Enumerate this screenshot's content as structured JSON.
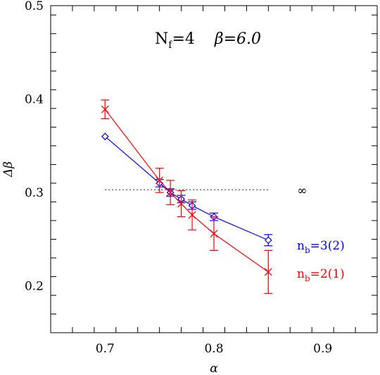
{
  "chart_data": {
    "type": "line",
    "title": "Nf=4   β=6.0",
    "title_parts": {
      "n_main": "N",
      "n_sub": "f",
      "n_rest": "=4",
      "beta": "β=6.0"
    },
    "xlabel": "α",
    "ylabel": "Δβ",
    "xlim": [
      0.65,
      0.95
    ],
    "ylim": [
      0.15,
      0.5
    ],
    "x_ticks": [
      0.7,
      0.8,
      0.9
    ],
    "x_tick_labels": [
      "0.7",
      "0.8",
      "0.9"
    ],
    "y_ticks": [
      0.2,
      0.3,
      0.4,
      0.5
    ],
    "y_tick_labels": [
      "0.2",
      "0.3",
      "0.4",
      "0.5"
    ],
    "x_minor_step": 0.02,
    "y_minor_step": 0.02,
    "grid": false,
    "series": [
      {
        "label_main": "n",
        "label_sub": "b",
        "label_rest": "=3(2)",
        "color": "#0000ff",
        "marker": "diamond",
        "points": [
          {
            "x": 0.7,
            "y": 0.36,
            "err": 0.0
          },
          {
            "x": 0.75,
            "y": 0.31,
            "err": 0.004
          },
          {
            "x": 0.76,
            "y": 0.3,
            "err": 0.004
          },
          {
            "x": 0.77,
            "y": 0.293,
            "err": 0.004
          },
          {
            "x": 0.78,
            "y": 0.286,
            "err": 0.004
          },
          {
            "x": 0.8,
            "y": 0.274,
            "err": 0.004
          },
          {
            "x": 0.85,
            "y": 0.249,
            "err": 0.006
          }
        ]
      },
      {
        "label_main": "n",
        "label_sub": "b",
        "label_rest": "=2(1)",
        "color": "#ff0000",
        "marker": "cross",
        "points": [
          {
            "x": 0.7,
            "y": 0.389,
            "err": 0.01
          },
          {
            "x": 0.75,
            "y": 0.313,
            "err": 0.013
          },
          {
            "x": 0.76,
            "y": 0.3,
            "err": 0.013
          },
          {
            "x": 0.77,
            "y": 0.288,
            "err": 0.014
          },
          {
            "x": 0.78,
            "y": 0.276,
            "err": 0.016
          },
          {
            "x": 0.8,
            "y": 0.256,
            "err": 0.018
          },
          {
            "x": 0.85,
            "y": 0.215,
            "err": 0.023
          }
        ]
      }
    ],
    "reference_line": {
      "y": 0.303,
      "x_start": 0.7,
      "x_end": 0.85,
      "style": "dotted",
      "label": "∞"
    }
  }
}
